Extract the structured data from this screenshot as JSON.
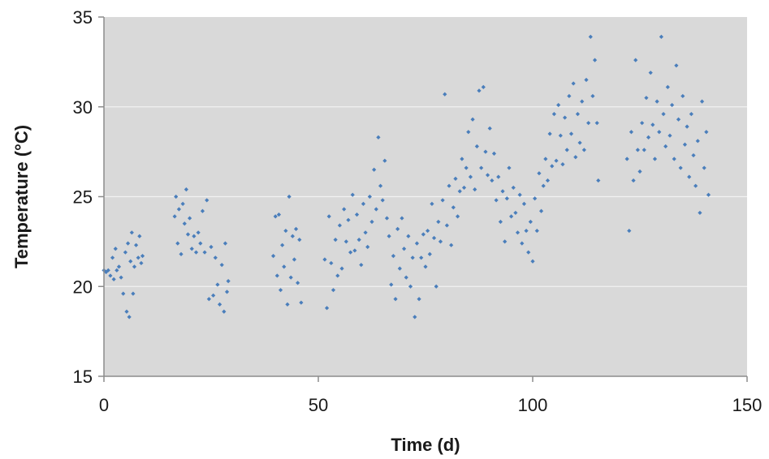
{
  "chart_data": {
    "type": "scatter",
    "title": "",
    "xlabel": "Time (d)",
    "ylabel": "Temperature (°C)",
    "xlim": [
      0,
      150
    ],
    "ylim": [
      15,
      35
    ],
    "x_ticks": [
      {
        "value": 0,
        "label": "0"
      },
      {
        "value": 50,
        "label": "50"
      },
      {
        "value": 100,
        "label": "100"
      },
      {
        "value": 150,
        "label": "150"
      }
    ],
    "y_ticks": [
      {
        "value": 15,
        "label": "15"
      },
      {
        "value": 20,
        "label": "20"
      },
      {
        "value": 25,
        "label": "25"
      },
      {
        "value": 30,
        "label": "30"
      },
      {
        "value": 35,
        "label": "35"
      }
    ],
    "grid": {
      "horizontal": true,
      "vertical": false
    },
    "plot_background": "#d9d9d9",
    "gridline_color": "#f2f2f2",
    "marker_color": "#4a7ebb",
    "marker": "diamond",
    "legend": "none",
    "series": [
      {
        "values": [
          [
            0.0,
            20.9
          ],
          [
            0.5,
            20.8
          ],
          [
            1.0,
            20.9
          ],
          [
            1.5,
            20.6
          ],
          [
            2.0,
            21.6
          ],
          [
            2.3,
            20.4
          ],
          [
            2.7,
            22.1
          ],
          [
            3.0,
            20.9
          ],
          [
            3.5,
            21.1
          ],
          [
            4.0,
            20.5
          ],
          [
            4.5,
            19.6
          ],
          [
            5.0,
            21.9
          ],
          [
            5.3,
            18.6
          ],
          [
            5.6,
            22.4
          ],
          [
            5.9,
            18.3
          ],
          [
            6.2,
            21.4
          ],
          [
            6.5,
            23.0
          ],
          [
            6.8,
            19.6
          ],
          [
            7.1,
            21.1
          ],
          [
            7.5,
            22.3
          ],
          [
            8.0,
            21.6
          ],
          [
            8.3,
            22.8
          ],
          [
            8.7,
            21.3
          ],
          [
            9.0,
            21.7
          ],
          [
            16.5,
            23.9
          ],
          [
            16.8,
            25.0
          ],
          [
            17.2,
            22.4
          ],
          [
            17.5,
            24.3
          ],
          [
            18.0,
            21.8
          ],
          [
            18.4,
            24.6
          ],
          [
            18.8,
            23.5
          ],
          [
            19.2,
            25.4
          ],
          [
            19.6,
            22.9
          ],
          [
            20.0,
            23.8
          ],
          [
            20.5,
            22.1
          ],
          [
            21.0,
            22.8
          ],
          [
            21.5,
            21.9
          ],
          [
            22.0,
            23.0
          ],
          [
            22.5,
            22.4
          ],
          [
            23.0,
            24.2
          ],
          [
            23.5,
            21.9
          ],
          [
            24.0,
            24.8
          ],
          [
            24.5,
            19.3
          ],
          [
            25.0,
            22.2
          ],
          [
            25.5,
            19.5
          ],
          [
            26.0,
            21.6
          ],
          [
            26.5,
            20.1
          ],
          [
            27.0,
            19.0
          ],
          [
            27.5,
            21.2
          ],
          [
            28.0,
            18.6
          ],
          [
            28.3,
            22.4
          ],
          [
            28.7,
            19.7
          ],
          [
            29.0,
            20.3
          ],
          [
            39.5,
            21.7
          ],
          [
            40.0,
            23.9
          ],
          [
            40.4,
            20.6
          ],
          [
            40.8,
            24.0
          ],
          [
            41.2,
            19.8
          ],
          [
            41.6,
            22.3
          ],
          [
            42.0,
            21.1
          ],
          [
            42.4,
            23.1
          ],
          [
            42.8,
            19.0
          ],
          [
            43.2,
            25.0
          ],
          [
            43.6,
            20.5
          ],
          [
            44.0,
            22.8
          ],
          [
            44.4,
            21.5
          ],
          [
            44.8,
            23.2
          ],
          [
            45.2,
            20.2
          ],
          [
            45.6,
            22.6
          ],
          [
            46.0,
            19.1
          ],
          [
            51.5,
            21.5
          ],
          [
            52.0,
            18.8
          ],
          [
            52.5,
            23.9
          ],
          [
            53.0,
            21.3
          ],
          [
            53.5,
            19.8
          ],
          [
            54.0,
            22.6
          ],
          [
            54.5,
            20.6
          ],
          [
            55.0,
            23.4
          ],
          [
            55.5,
            21.0
          ],
          [
            56.0,
            24.3
          ],
          [
            56.5,
            22.5
          ],
          [
            57.0,
            23.7
          ],
          [
            57.5,
            21.9
          ],
          [
            58.0,
            25.1
          ],
          [
            58.5,
            22.0
          ],
          [
            59.0,
            24.0
          ],
          [
            59.5,
            22.6
          ],
          [
            60.0,
            21.2
          ],
          [
            60.5,
            24.6
          ],
          [
            61.0,
            23.0
          ],
          [
            61.5,
            22.2
          ],
          [
            62.0,
            25.0
          ],
          [
            62.5,
            23.6
          ],
          [
            63.0,
            26.5
          ],
          [
            63.5,
            24.3
          ],
          [
            64.0,
            28.3
          ],
          [
            64.5,
            25.6
          ],
          [
            65.0,
            24.8
          ],
          [
            65.5,
            27.0
          ],
          [
            66.0,
            23.8
          ],
          [
            66.5,
            22.8
          ],
          [
            67.0,
            20.1
          ],
          [
            67.5,
            21.7
          ],
          [
            68.0,
            19.3
          ],
          [
            68.5,
            23.2
          ],
          [
            69.0,
            21.0
          ],
          [
            69.5,
            23.8
          ],
          [
            70.0,
            22.1
          ],
          [
            70.5,
            20.5
          ],
          [
            71.0,
            22.8
          ],
          [
            71.5,
            20.0
          ],
          [
            72.0,
            21.6
          ],
          [
            72.5,
            18.3
          ],
          [
            73.0,
            22.4
          ],
          [
            73.5,
            19.3
          ],
          [
            74.0,
            21.6
          ],
          [
            74.5,
            22.9
          ],
          [
            75.0,
            21.1
          ],
          [
            75.5,
            23.1
          ],
          [
            76.0,
            21.8
          ],
          [
            76.5,
            24.6
          ],
          [
            77.0,
            22.7
          ],
          [
            77.5,
            20.0
          ],
          [
            78.0,
            23.6
          ],
          [
            78.5,
            22.5
          ],
          [
            79.0,
            24.8
          ],
          [
            79.5,
            30.7
          ],
          [
            80.0,
            23.4
          ],
          [
            80.5,
            25.6
          ],
          [
            81.0,
            22.3
          ],
          [
            81.5,
            24.4
          ],
          [
            82.0,
            26.0
          ],
          [
            82.5,
            23.9
          ],
          [
            83.0,
            25.3
          ],
          [
            83.5,
            27.1
          ],
          [
            84.0,
            25.5
          ],
          [
            84.5,
            26.6
          ],
          [
            85.0,
            28.6
          ],
          [
            85.5,
            26.1
          ],
          [
            86.0,
            29.3
          ],
          [
            86.5,
            25.4
          ],
          [
            87.0,
            27.8
          ],
          [
            87.5,
            30.9
          ],
          [
            88.0,
            26.6
          ],
          [
            88.5,
            31.1
          ],
          [
            89.0,
            27.5
          ],
          [
            89.5,
            26.2
          ],
          [
            90.0,
            28.8
          ],
          [
            90.5,
            25.9
          ],
          [
            91.0,
            27.4
          ],
          [
            91.5,
            24.8
          ],
          [
            92.0,
            26.1
          ],
          [
            92.5,
            23.6
          ],
          [
            93.0,
            25.3
          ],
          [
            93.5,
            22.5
          ],
          [
            94.0,
            24.9
          ],
          [
            94.5,
            26.6
          ],
          [
            95.0,
            23.9
          ],
          [
            95.5,
            25.5
          ],
          [
            96.0,
            24.1
          ],
          [
            96.5,
            23.0
          ],
          [
            97.0,
            25.1
          ],
          [
            97.5,
            22.4
          ],
          [
            98.0,
            24.6
          ],
          [
            98.5,
            23.1
          ],
          [
            99.0,
            21.9
          ],
          [
            99.5,
            23.6
          ],
          [
            100.0,
            21.4
          ],
          [
            100.5,
            24.9
          ],
          [
            101.0,
            23.1
          ],
          [
            101.5,
            26.3
          ],
          [
            102.0,
            24.2
          ],
          [
            102.5,
            25.6
          ],
          [
            103.0,
            27.1
          ],
          [
            103.5,
            25.9
          ],
          [
            104.0,
            28.5
          ],
          [
            104.5,
            26.7
          ],
          [
            105.0,
            29.6
          ],
          [
            105.5,
            27.0
          ],
          [
            106.0,
            30.1
          ],
          [
            106.5,
            28.4
          ],
          [
            107.0,
            26.8
          ],
          [
            107.5,
            29.4
          ],
          [
            108.0,
            27.6
          ],
          [
            108.5,
            30.6
          ],
          [
            109.0,
            28.5
          ],
          [
            109.5,
            31.3
          ],
          [
            110.0,
            27.2
          ],
          [
            110.5,
            29.6
          ],
          [
            111.0,
            28.0
          ],
          [
            111.5,
            30.3
          ],
          [
            112.0,
            27.6
          ],
          [
            112.5,
            31.5
          ],
          [
            113.0,
            29.1
          ],
          [
            113.5,
            33.9
          ],
          [
            114.0,
            30.6
          ],
          [
            114.5,
            32.6
          ],
          [
            115.0,
            29.1
          ],
          [
            115.3,
            25.9
          ],
          [
            122.0,
            27.1
          ],
          [
            122.5,
            23.1
          ],
          [
            123.0,
            28.6
          ],
          [
            123.5,
            25.9
          ],
          [
            124.0,
            32.6
          ],
          [
            124.5,
            27.6
          ],
          [
            125.0,
            26.4
          ],
          [
            125.5,
            29.1
          ],
          [
            126.0,
            27.6
          ],
          [
            126.5,
            30.5
          ],
          [
            127.0,
            28.3
          ],
          [
            127.5,
            31.9
          ],
          [
            128.0,
            29.0
          ],
          [
            128.5,
            27.1
          ],
          [
            129.0,
            30.3
          ],
          [
            129.5,
            28.6
          ],
          [
            130.0,
            33.9
          ],
          [
            130.5,
            29.6
          ],
          [
            131.0,
            27.8
          ],
          [
            131.5,
            31.1
          ],
          [
            132.0,
            28.4
          ],
          [
            132.5,
            30.1
          ],
          [
            133.0,
            27.1
          ],
          [
            133.5,
            32.3
          ],
          [
            134.0,
            29.3
          ],
          [
            134.5,
            26.6
          ],
          [
            135.0,
            30.6
          ],
          [
            135.5,
            27.9
          ],
          [
            136.0,
            28.9
          ],
          [
            136.5,
            26.1
          ],
          [
            137.0,
            29.6
          ],
          [
            137.5,
            27.3
          ],
          [
            138.0,
            25.6
          ],
          [
            138.5,
            28.1
          ],
          [
            139.0,
            24.1
          ],
          [
            139.5,
            30.3
          ],
          [
            140.0,
            26.6
          ],
          [
            140.5,
            28.6
          ],
          [
            141.0,
            25.1
          ]
        ]
      }
    ]
  }
}
